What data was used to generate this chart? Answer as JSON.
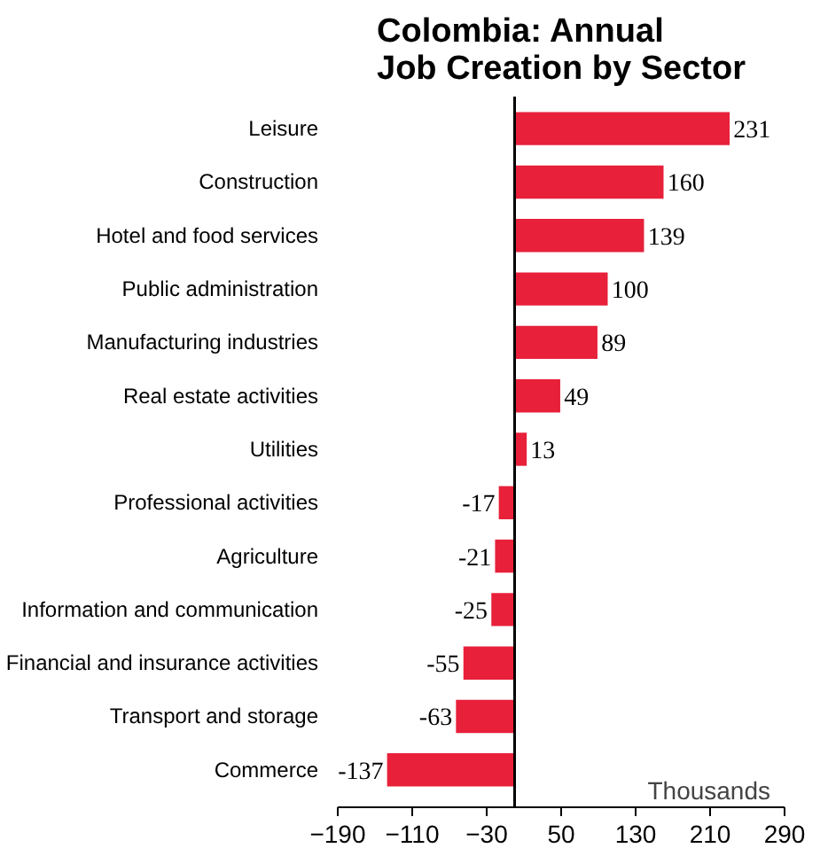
{
  "chart_data": {
    "type": "bar",
    "orientation": "horizontal",
    "title": "Colombia: Annual\nJob Creation by Sector",
    "xlabel": "Thousands",
    "categories": [
      "Leisure",
      "Construction",
      "Hotel and food services",
      "Public administration",
      "Manufacturing industries",
      "Real estate activities",
      "Utilities",
      "Professional activities",
      "Agriculture",
      "Information and communication",
      "Financial and insurance activities",
      "Transport and storage",
      "Commerce"
    ],
    "values": [
      231,
      160,
      139,
      100,
      89,
      49,
      13,
      -17,
      -21,
      -25,
      -55,
      -63,
      -137
    ],
    "color": "#e8203a",
    "data_labels": true,
    "grid": false,
    "xlim": [
      -190,
      290
    ],
    "xticks": [
      -190,
      -110,
      -30,
      50,
      130,
      210,
      290
    ]
  }
}
